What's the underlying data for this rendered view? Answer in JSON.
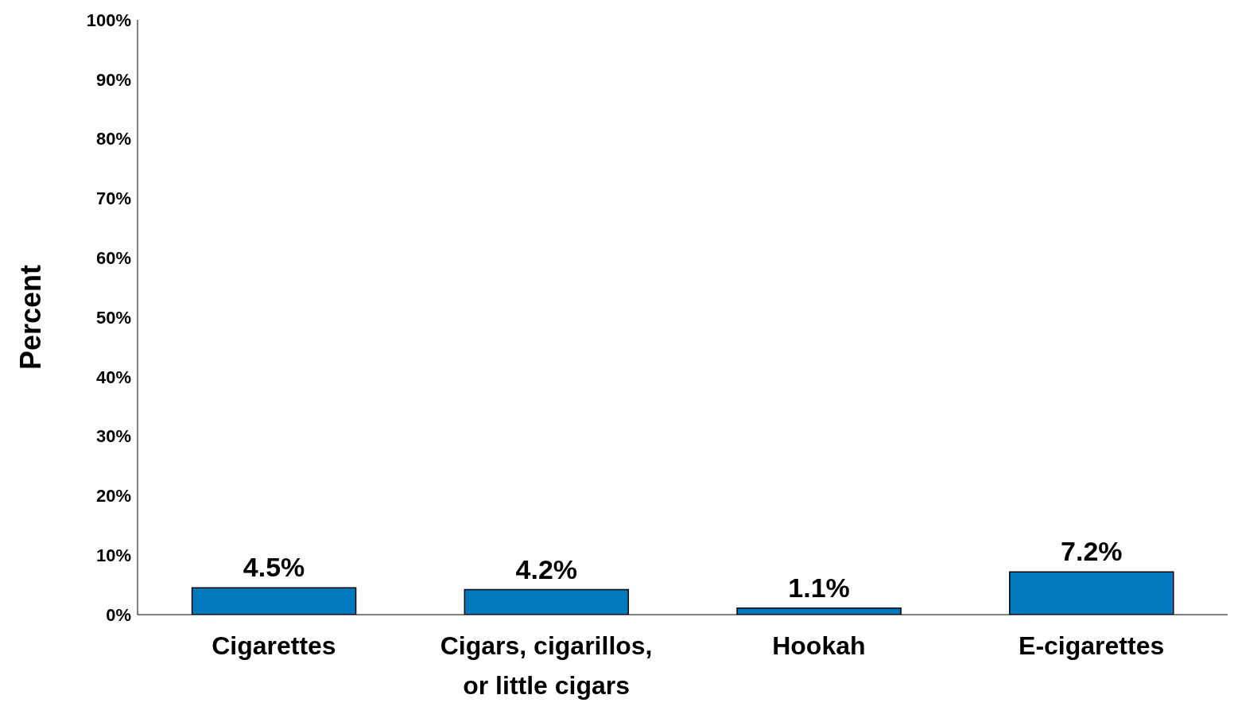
{
  "chart_data": {
    "type": "bar",
    "ylabel": "Percent",
    "categories": [
      "Cigarettes",
      "Cigars, cigarillos, or little cigars",
      "Hookah",
      "E-cigarettes"
    ],
    "values": [
      4.5,
      4.2,
      1.1,
      7.2
    ],
    "color": "#0079bf",
    "value_labels": [
      "4.5%",
      "4.2%",
      "1.1%",
      "7.2%"
    ],
    "ylim": [
      0,
      100
    ],
    "yticks": [
      {
        "value": 0,
        "label": "0%"
      },
      {
        "value": 10,
        "label": "10%"
      },
      {
        "value": 20,
        "label": "20%"
      },
      {
        "value": 30,
        "label": "30%"
      },
      {
        "value": 40,
        "label": "40%"
      },
      {
        "value": 50,
        "label": "50%"
      },
      {
        "value": 60,
        "label": "60%"
      },
      {
        "value": 70,
        "label": "70%"
      },
      {
        "value": 80,
        "label": "80%"
      },
      {
        "value": 90,
        "label": "90%"
      },
      {
        "value": 100,
        "label": "100%"
      }
    ],
    "grid": false,
    "legend": false
  }
}
